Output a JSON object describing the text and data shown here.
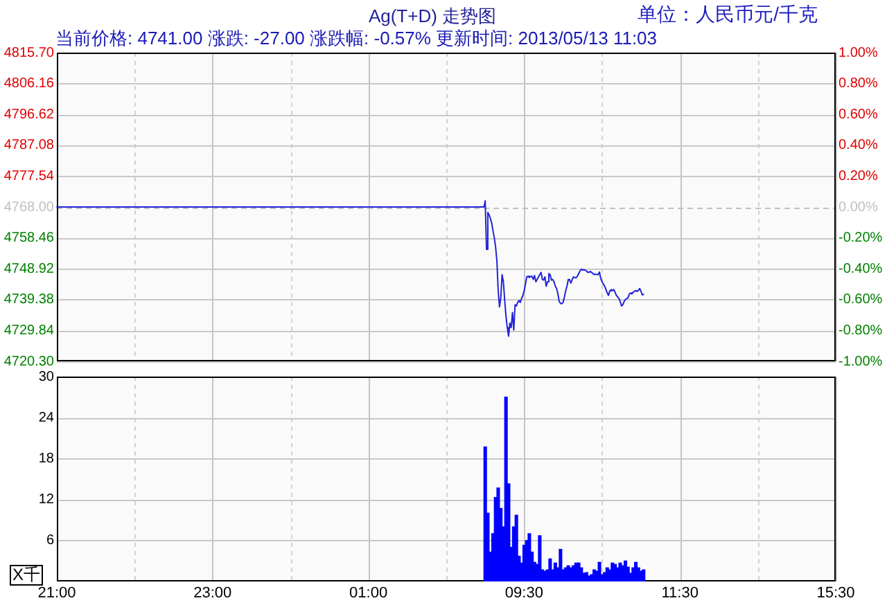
{
  "chart_data": [
    {
      "type": "line",
      "title": "Ag(T+D) 走势图",
      "subtitle": "当前价格: 4741.00 涨跌: -27.00 涨跌幅: -0.57% 更新时间: 2013/05/13 11:03",
      "annotations": [
        "单位：人民币元/千克"
      ],
      "categories": [
        null,
        null,
        null,
        null,
        null,
        null,
        null,
        null,
        null,
        null,
        null,
        null,
        null,
        null,
        null,
        null,
        null,
        null,
        null,
        null,
        null,
        null,
        null,
        null,
        null,
        null,
        null,
        null,
        null,
        null,
        null,
        null,
        null,
        null,
        null,
        null,
        null,
        null,
        null,
        null,
        null,
        null,
        null,
        null,
        null,
        null,
        null,
        null,
        null,
        null,
        null,
        null,
        null,
        null,
        null,
        null,
        null,
        null,
        null,
        null,
        null,
        null,
        null,
        null,
        null,
        null,
        null,
        null,
        null,
        null,
        null,
        null,
        null,
        null,
        null,
        null,
        null,
        null,
        null,
        null,
        null,
        null,
        null,
        null,
        null,
        null,
        null,
        null,
        null,
        null,
        null,
        null,
        null,
        null,
        null,
        null,
        null,
        null,
        null,
        null,
        null,
        null,
        null,
        null,
        null,
        null,
        null,
        null,
        null,
        null,
        null,
        null,
        null,
        null,
        null,
        null,
        null,
        null,
        null,
        null,
        null,
        null,
        null,
        null,
        null,
        null,
        null,
        null,
        null,
        null,
        null,
        null,
        null,
        null,
        null,
        null,
        null,
        null,
        null,
        null,
        null,
        null,
        null,
        null,
        null,
        null,
        null,
        null,
        null,
        null,
        null,
        null,
        null,
        null,
        null,
        null,
        null,
        null,
        null,
        null,
        null,
        null,
        null,
        null,
        null,
        null,
        null,
        null,
        null,
        null,
        null,
        null,
        null,
        null,
        null,
        null,
        null,
        null,
        null,
        null,
        null,
        null,
        null,
        null,
        null,
        null,
        null,
        null,
        null,
        null,
        null,
        null,
        null,
        null,
        null,
        null,
        null,
        null,
        null,
        null,
        null,
        null,
        null,
        null,
        null,
        null,
        null,
        null,
        null,
        null,
        null,
        null,
        null,
        null,
        null,
        null,
        null,
        null,
        null,
        null,
        null,
        null,
        null,
        null,
        null,
        null,
        null,
        null,
        null,
        null,
        null,
        null,
        null,
        null,
        null,
        null,
        null,
        null,
        null,
        null,
        null,
        null,
        null,
        null,
        null,
        null,
        null,
        null,
        null,
        null,
        null,
        null,
        null,
        null,
        null,
        null,
        null,
        null,
        null,
        null,
        null,
        null,
        null,
        null,
        null,
        null,
        null,
        null,
        null,
        null,
        null,
        null,
        null,
        null,
        null,
        null,
        null,
        null,
        null,
        null,
        null,
        null,
        null,
        null,
        null,
        null,
        null,
        null,
        null,
        null,
        null,
        null,
        null,
        null,
        null,
        null,
        null,
        null,
        null,
        null,
        null,
        null,
        null,
        null,
        null,
        null,
        null,
        null,
        null,
        null,
        null,
        null,
        null,
        null,
        null,
        null,
        null,
        null,
        null,
        null,
        null,
        null,
        null,
        null,
        null,
        null,
        null,
        null,
        null,
        null,
        null,
        null,
        null,
        null,
        null,
        null,
        null,
        null,
        null,
        null,
        null,
        null,
        null,
        null,
        null,
        null,
        null,
        null,
        null,
        null,
        null,
        null,
        null,
        null,
        null,
        null,
        null,
        null,
        null,
        null,
        null,
        null,
        null,
        null,
        null,
        null,
        null,
        null,
        null,
        null,
        null,
        null,
        null,
        null,
        null,
        null,
        null,
        null,
        null,
        null,
        null,
        null,
        null,
        null,
        null,
        null,
        null,
        null,
        null,
        null,
        null,
        null,
        null,
        null,
        null,
        null,
        null,
        null,
        null,
        null,
        null,
        null,
        null,
        null,
        null,
        null,
        null,
        null,
        null,
        null,
        null,
        null,
        null,
        null,
        null,
        null,
        null,
        null,
        null,
        null,
        null,
        null,
        null,
        null,
        null,
        null,
        null,
        null,
        null,
        null,
        null,
        null,
        null,
        null,
        null,
        null,
        null,
        null,
        null,
        null,
        null,
        null,
        null,
        null,
        null,
        null,
        null,
        null,
        null,
        null,
        null,
        null,
        null,
        null,
        null,
        null,
        null,
        null,
        null,
        null,
        null,
        null,
        null,
        null,
        null,
        null,
        null,
        null,
        null,
        null,
        null,
        null,
        null,
        null,
        null,
        null,
        null,
        null,
        null,
        null,
        null,
        null,
        null,
        null,
        null,
        null,
        null,
        null,
        null,
        null,
        null,
        null,
        null,
        null,
        null,
        null,
        null,
        null,
        null,
        null,
        null,
        null,
        null,
        null,
        null,
        null,
        null,
        null,
        null,
        null,
        null,
        null,
        null,
        null,
        null,
        null,
        null,
        null,
        null,
        null,
        null,
        null,
        null,
        null,
        null,
        null,
        null,
        null,
        null,
        null,
        null,
        null,
        null,
        null,
        null,
        null,
        null,
        null,
        null,
        null,
        null,
        null,
        null,
        null,
        null,
        null,
        null,
        null,
        null,
        null,
        null,
        null,
        null,
        null,
        null,
        null,
        null,
        null,
        null,
        null,
        null,
        null,
        null,
        null,
        null,
        null,
        null,
        null,
        null,
        null,
        null,
        null,
        null,
        null,
        null,
        null,
        null,
        null,
        null,
        null,
        null,
        null,
        null,
        null,
        null,
        null,
        null,
        null,
        null,
        null,
        null,
        null,
        null,
        null,
        null,
        null,
        null,
        null,
        null,
        null,
        null
      ],
      "values": [
        4768,
        4768,
        4768,
        4768,
        4768,
        4768,
        4768,
        4768,
        4768,
        4768,
        4768,
        4768,
        4768,
        4768,
        4768,
        4768,
        4768,
        4768,
        4768,
        4768,
        4768,
        4768,
        4768,
        4768,
        4768,
        4768,
        4768,
        4768,
        4768,
        4768,
        4768,
        4768,
        4768,
        4768,
        4768,
        4768,
        4768,
        4768,
        4768,
        4768,
        4768,
        4768,
        4768,
        4768,
        4768,
        4768,
        4768,
        4768,
        4768,
        4768,
        4768,
        4768,
        4768,
        4768,
        4768,
        4768,
        4768,
        4768,
        4768,
        4768,
        4768,
        4768,
        4768,
        4768,
        4768,
        4768,
        4768,
        4768,
        4768,
        4768,
        4768,
        4768,
        4768,
        4768,
        4768,
        4768,
        4768,
        4768,
        4768,
        4768,
        4768,
        4768,
        4768,
        4768,
        4768,
        4768,
        4768,
        4768,
        4768,
        4768,
        4768,
        4768,
        4768,
        4768,
        4768,
        4768,
        4768,
        4768,
        4768,
        4768,
        4768,
        4768,
        4768,
        4768,
        4768,
        4768,
        4768,
        4768,
        4768,
        4768,
        4768,
        4768,
        4768,
        4768,
        4768,
        4768,
        4768,
        4768,
        4768,
        4768,
        4768,
        4768,
        4768,
        4768,
        4768,
        4768,
        4768,
        4768,
        4768,
        4768,
        4768,
        4768,
        4768,
        4768,
        4768,
        4768,
        4768,
        4768,
        4768,
        4768,
        4768,
        4768,
        4768,
        4768,
        4768,
        4768,
        4768,
        4768,
        4768,
        4768,
        4768,
        4768,
        4768,
        4768,
        4768,
        4768,
        4768,
        4768,
        4768,
        4768,
        4768,
        4768,
        4768,
        4768,
        4768,
        4768,
        4768,
        4768,
        4768,
        4768,
        4768,
        4768,
        4768,
        4768,
        4768,
        4768,
        4768,
        4768,
        4768,
        4768,
        4768,
        4768,
        4768,
        4768,
        4768,
        4768,
        4768,
        4768,
        4768,
        4768,
        4768,
        4768,
        4768,
        4768,
        4768,
        4768,
        4768,
        4768,
        4768,
        4768,
        4768,
        4768,
        4768,
        4768,
        4768,
        4768,
        4768,
        4768,
        4768,
        4768,
        4768,
        4768,
        4768,
        4768,
        4768,
        4768,
        4768,
        4768,
        4768,
        4768,
        4768,
        4768,
        4768,
        4768,
        4768,
        4768,
        4768,
        4768,
        4768,
        4768,
        4768,
        4768,
        4768,
        4768,
        4768,
        4768,
        4768,
        4768,
        4768,
        4768,
        4768,
        4768,
        4768,
        4768,
        4768,
        4768,
        4768,
        4768,
        4768,
        4768,
        4768,
        4768,
        4768,
        4768,
        4768,
        4768,
        4768,
        4768,
        4768,
        4768,
        4768,
        4768,
        4768,
        4768,
        4768,
        4768,
        4768,
        4768,
        4768,
        4768,
        4768,
        4768,
        4768,
        4768,
        4768,
        4768,
        4768,
        4768,
        4768,
        4768,
        4768,
        4768,
        4768,
        4768,
        4768,
        4768,
        4768,
        4768,
        4768,
        4768,
        4768,
        4768,
        4768,
        4768,
        4768,
        4768,
        4768,
        4768,
        4768,
        4768,
        4768,
        4768,
        4768,
        4768,
        4768,
        4768,
        4768,
        4768,
        4768,
        4768,
        4768,
        4768,
        4768,
        4768,
        4768,
        4768,
        4768,
        4768,
        4768,
        4768,
        4768,
        4768,
        4768,
        4768,
        4768,
        4768,
        4768,
        4768,
        4768,
        4768,
        4769.9,
        4754.9,
        4766.3,
        4765.6,
        4764.4,
        4763.0,
        4760.6,
        4758.5,
        4755.6,
        4751.3,
        4742.1,
        4737.1,
        4740.0,
        4747.1,
        4744.9,
        4739.2,
        4734.3,
        4730.7,
        4728.1,
        4732.1,
        4730.7,
        4735.4,
        4730.0,
        4737.8,
        4737.4,
        4738.5,
        4739.1,
        4738.5,
        4739.7,
        4740.7,
        4742.1,
        4744.2,
        4746.4,
        4746.6,
        4746.2,
        4746.5,
        4746.6,
        4745.6,
        4746.8,
        4744.9,
        4745.6,
        4746.4,
        4747.1,
        4747.8,
        4745.6,
        4745.4,
        4746.4,
        4743.5,
        4744.9,
        4747.4,
        4747.1,
        4745.4,
        4745.6,
        4744.9,
        4743.5,
        4742.8,
        4741.1,
        4738.8,
        4738.2,
        4738.1,
        4738.5,
        4740.2,
        4742.1,
        4743.5,
        4745.6,
        4745.4,
        4744.5,
        4745.6,
        4746.4,
        4746.2,
        4746.1,
        4746.6,
        4747.4,
        4748.2,
        4748.8,
        4748.5,
        4748.6,
        4748.5,
        4748.2,
        4747.8,
        4747.9,
        4748.1,
        4747.8,
        4747.4,
        4747.1,
        4747.3,
        4747.1,
        4747.1,
        4747.9,
        4745.9,
        4744.9,
        4744.2,
        4743.5,
        4742.5,
        4741.4,
        4740.7,
        4742.1,
        4742.5,
        4742.1,
        4742.5,
        4741.7,
        4740.7,
        4740.2,
        4739.7,
        4738.8,
        4737.4,
        4737.8,
        4738.8,
        4739.4,
        4739.7,
        4739.9,
        4741.1,
        4741.4,
        4741.1,
        4741.7,
        4741.9,
        4742.2,
        4741.9,
        4742.2,
        4742.8,
        4741.9,
        4740.8,
        4741.0,
        null,
        null,
        null,
        null,
        null,
        null,
        null,
        null,
        null,
        null,
        null,
        null,
        null,
        null,
        null,
        null,
        null,
        null,
        null,
        null,
        null,
        null,
        null,
        null,
        null,
        null,
        null,
        null,
        null,
        null,
        null,
        null,
        null,
        null,
        null,
        null,
        null,
        null,
        null,
        null,
        null,
        null,
        null,
        null,
        null,
        null,
        null,
        null,
        null,
        null,
        null,
        null,
        null,
        null,
        null,
        null,
        null,
        null,
        null,
        null,
        null,
        null,
        null,
        null,
        null,
        null,
        null,
        null,
        null,
        null,
        null,
        null,
        null,
        null,
        null,
        null,
        null,
        null,
        null,
        null,
        null,
        null,
        null,
        null,
        null,
        null,
        null,
        null,
        null,
        null,
        null,
        null,
        null,
        null,
        null,
        null,
        null,
        null,
        null,
        null,
        null,
        null,
        null,
        null,
        null,
        null,
        null,
        null,
        null,
        null,
        null,
        null,
        null,
        null,
        null,
        null,
        null,
        null,
        null,
        null,
        null,
        null,
        null,
        null,
        null,
        null,
        null,
        null,
        null,
        null,
        null,
        null,
        null,
        null,
        null,
        null,
        null,
        null,
        null,
        null,
        null,
        null,
        null,
        null,
        null,
        null,
        null,
        null
      ],
      "color": "#2323d6",
      "ylim": [
        4720.3,
        4815.7
      ],
      "yticks": [
        {
          "value": 4720.3,
          "label": "4720.30"
        },
        4729.84,
        4739.38,
        4748.92,
        4758.46,
        {
          "value": 4768,
          "label": "4768.00"
        },
        4777.54,
        4787.08,
        4796.62,
        4806.16,
        {
          "value": 4815.7,
          "label": "4815.70"
        }
      ],
      "y2lim": [
        -1,
        1
      ],
      "y2ticks": [
        {
          "value": -1,
          "label": "-1.00%"
        },
        {
          "value": -0.8,
          "label": "-0.80%"
        },
        {
          "value": -0.6,
          "label": "-0.60%"
        },
        {
          "value": -0.4,
          "label": "-0.40%"
        },
        {
          "value": -0.2,
          "label": "-0.20%"
        },
        {
          "value": 0,
          "label": "0.00%"
        },
        {
          "value": 0.2,
          "label": "0.20%"
        },
        {
          "value": 0.4,
          "label": "0.40%"
        },
        {
          "value": 0.6,
          "label": "0.60%"
        },
        {
          "value": 0.8,
          "label": "0.80%"
        },
        {
          "value": 1,
          "label": "1.00%"
        }
      ],
      "grid": true,
      "ref_lines": [
        {
          "axis": "y",
          "value": 4768,
          "color": "#c0c0c0",
          "line_style": "dashed"
        }
      ]
    },
    {
      "type": "bar",
      "ylabel": "X千",
      "categories": [
        "21:00",
        null,
        null,
        null,
        null,
        null,
        null,
        null,
        null,
        null,
        null,
        null,
        null,
        null,
        null,
        null,
        null,
        null,
        null,
        null,
        null,
        null,
        null,
        null,
        null,
        null,
        null,
        null,
        null,
        null,
        null,
        null,
        null,
        null,
        null,
        null,
        null,
        null,
        null,
        null,
        null,
        null,
        null,
        null,
        null,
        null,
        null,
        null,
        null,
        null,
        null,
        null,
        null,
        null,
        null,
        null,
        null,
        null,
        null,
        null,
        "23:00",
        null,
        null,
        null,
        null,
        null,
        null,
        null,
        null,
        null,
        null,
        null,
        null,
        null,
        null,
        null,
        null,
        null,
        null,
        null,
        null,
        null,
        null,
        null,
        null,
        null,
        null,
        null,
        null,
        null,
        null,
        null,
        null,
        null,
        null,
        null,
        null,
        null,
        null,
        null,
        null,
        null,
        null,
        null,
        null,
        null,
        null,
        null,
        null,
        null,
        null,
        null,
        null,
        null,
        null,
        null,
        null,
        null,
        null,
        null,
        "01:00",
        null,
        null,
        null,
        null,
        null,
        null,
        null,
        null,
        null,
        null,
        null,
        null,
        null,
        null,
        null,
        null,
        null,
        null,
        null,
        null,
        null,
        null,
        null,
        null,
        null,
        null,
        null,
        null,
        null,
        null,
        null,
        null,
        null,
        null,
        null,
        null,
        null,
        null,
        null,
        null,
        null,
        null,
        null,
        null,
        null,
        null,
        null,
        null,
        null,
        null,
        null,
        null,
        null,
        null,
        null,
        null,
        null,
        null,
        null,
        "09:30",
        null,
        null,
        null,
        null,
        null,
        null,
        null,
        null,
        null,
        null,
        null,
        null,
        null,
        null,
        null,
        null,
        null,
        null,
        null,
        null,
        null,
        null,
        null,
        null,
        null,
        null,
        null,
        null,
        null,
        null,
        null,
        null,
        null,
        null,
        null,
        null,
        null,
        null,
        null,
        null,
        null,
        null,
        null,
        null,
        null,
        null,
        null,
        null,
        null,
        null,
        null,
        null,
        null,
        null,
        null,
        null,
        null,
        null,
        null,
        "11:30",
        null,
        null,
        null,
        null,
        null,
        null,
        null,
        null,
        null,
        null,
        null,
        null,
        null,
        null,
        null,
        null,
        null,
        null,
        null,
        null,
        null,
        null,
        null,
        null,
        null,
        null,
        null,
        null,
        null,
        null,
        null,
        null,
        null,
        null,
        null,
        null,
        null,
        null,
        null,
        null,
        null,
        null,
        null,
        null,
        null,
        null,
        null,
        null,
        null,
        null,
        null,
        null,
        null,
        null,
        null,
        null,
        null,
        null,
        null,
        "15:30"
      ],
      "values": [
        null,
        null,
        null,
        null,
        null,
        null,
        null,
        null,
        null,
        null,
        null,
        null,
        null,
        null,
        null,
        null,
        null,
        null,
        null,
        null,
        null,
        null,
        null,
        null,
        null,
        null,
        null,
        null,
        null,
        null,
        null,
        null,
        null,
        null,
        null,
        null,
        null,
        null,
        null,
        null,
        null,
        null,
        null,
        null,
        null,
        null,
        null,
        null,
        null,
        null,
        null,
        null,
        null,
        null,
        null,
        null,
        null,
        null,
        null,
        null,
        null,
        null,
        null,
        null,
        null,
        null,
        null,
        null,
        null,
        null,
        null,
        null,
        null,
        null,
        null,
        null,
        null,
        null,
        null,
        null,
        null,
        null,
        null,
        null,
        null,
        null,
        null,
        null,
        null,
        null,
        null,
        null,
        null,
        null,
        null,
        null,
        null,
        null,
        null,
        null,
        null,
        null,
        null,
        null,
        null,
        null,
        null,
        null,
        null,
        null,
        null,
        null,
        null,
        null,
        null,
        null,
        null,
        null,
        null,
        null,
        null,
        null,
        null,
        null,
        null,
        null,
        null,
        null,
        null,
        null,
        null,
        null,
        null,
        null,
        null,
        null,
        null,
        null,
        null,
        null,
        null,
        null,
        null,
        null,
        null,
        null,
        null,
        null,
        null,
        null,
        null,
        null,
        null,
        null,
        null,
        null,
        null,
        null,
        null,
        null,
        null,
        null,
        null,
        null,
        null,
        19.7,
        10.0,
        4.3,
        7.0,
        12.3,
        13.7,
        10.7,
        8.0,
        27.0,
        14.3,
        5.0,
        8.0,
        9.7,
        3.7,
        2.7,
        5.3,
        6.0,
        7.0,
        4.3,
        2.8,
        2.5,
        6.7,
        1.7,
        1.5,
        1.7,
        3.3,
        1.7,
        2.7,
        2.0,
        4.7,
        1.7,
        2.0,
        2.3,
        2.0,
        2.3,
        2.7,
        2.7,
        2.0,
        1.2,
        1.3,
        0.8,
        1.0,
        1.7,
        1.5,
        2.8,
        1.0,
        1.3,
        2.0,
        1.7,
        2.7,
        2.5,
        2.0,
        2.7,
        2.3,
        3.0,
        2.1,
        1.2,
        2.0,
        2.8,
        2.0,
        1.5,
        1.7,
        null,
        null,
        null,
        null,
        null,
        null,
        null,
        null,
        null,
        null,
        null,
        null,
        null,
        null,
        null,
        null,
        null,
        null,
        null,
        null,
        null,
        null,
        null,
        null,
        null,
        null,
        null,
        null,
        null,
        null,
        null,
        null,
        null,
        null,
        null,
        null,
        null,
        null,
        null,
        null,
        null,
        null,
        null,
        null,
        null,
        null,
        null,
        null,
        null,
        null,
        null,
        null,
        null,
        null,
        null,
        null,
        null,
        null,
        null,
        null,
        null,
        null,
        null,
        null,
        null,
        null,
        null,
        null,
        null,
        null,
        null,
        null,
        null,
        null
      ],
      "color": "#0000ff",
      "ylim": [
        0,
        30
      ],
      "yticks": [
        6,
        12,
        18,
        24,
        30
      ],
      "grid": true
    }
  ]
}
